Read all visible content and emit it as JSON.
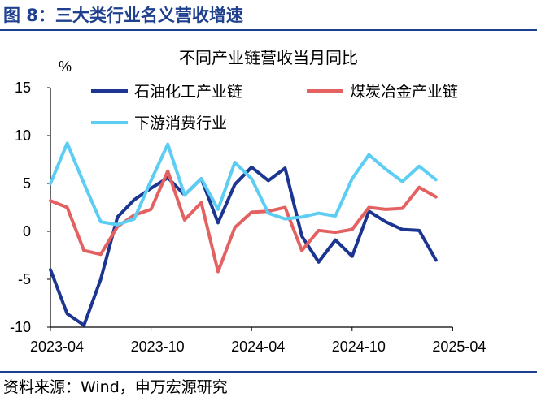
{
  "figure": {
    "heading": "图 8：三大类行业名义营收增速",
    "source": "资料来源：Wind，申万宏源研究"
  },
  "chart_data": {
    "type": "line",
    "title": "不同产业链营收当月同比",
    "ylabel": "%",
    "xlabel": "",
    "ylim": [
      -10,
      15
    ],
    "yticks": [
      "15",
      "10",
      "5",
      "0",
      "-5",
      "-10"
    ],
    "x": [
      "2023-04",
      "2023-05",
      "2023-06",
      "2023-07",
      "2023-08",
      "2023-09",
      "2023-10",
      "2023-11",
      "2023-12",
      "2024-01",
      "2024-02",
      "2024-03",
      "2024-04",
      "2024-05",
      "2024-06",
      "2024-07",
      "2024-08",
      "2024-09",
      "2024-10",
      "2024-11",
      "2024-12",
      "2025-01",
      "2025-02",
      "2025-03",
      "2025-04"
    ],
    "xtick_labels": [
      "2023-04",
      "2023-10",
      "2024-04",
      "2024-10",
      "2025-04"
    ],
    "xtick_positions": [
      0,
      6,
      12,
      18,
      24
    ],
    "legend_placement": "top",
    "grid": false,
    "series": [
      {
        "name": "石油化工产业链",
        "color": "#1c3591",
        "values": [
          -4.0,
          -8.6,
          -9.8,
          -5.0,
          1.5,
          3.3,
          4.5,
          5.6,
          3.8,
          5.5,
          0.9,
          4.9,
          6.7,
          5.3,
          6.6,
          -0.5,
          -3.2,
          -0.9,
          -2.6,
          2.1,
          1.0,
          0.2,
          0.1,
          -3.0,
          null
        ]
      },
      {
        "name": "煤炭冶金产业链",
        "color": "#e36161",
        "values": [
          3.2,
          2.5,
          -2.0,
          -2.4,
          0.5,
          1.7,
          2.3,
          6.3,
          1.2,
          3.0,
          -4.2,
          0.4,
          2.0,
          2.1,
          2.5,
          -2.0,
          0.1,
          -0.1,
          0.2,
          2.5,
          2.3,
          2.4,
          4.6,
          3.6,
          null
        ]
      },
      {
        "name": "下游消费行业",
        "color": "#5ccdf3",
        "values": [
          5.0,
          9.2,
          5.0,
          1.0,
          0.7,
          1.3,
          5.3,
          9.1,
          3.8,
          5.5,
          2.3,
          7.2,
          5.5,
          1.9,
          1.3,
          1.5,
          1.9,
          1.6,
          5.5,
          8.0,
          6.5,
          5.2,
          6.8,
          5.4,
          null
        ]
      }
    ]
  }
}
